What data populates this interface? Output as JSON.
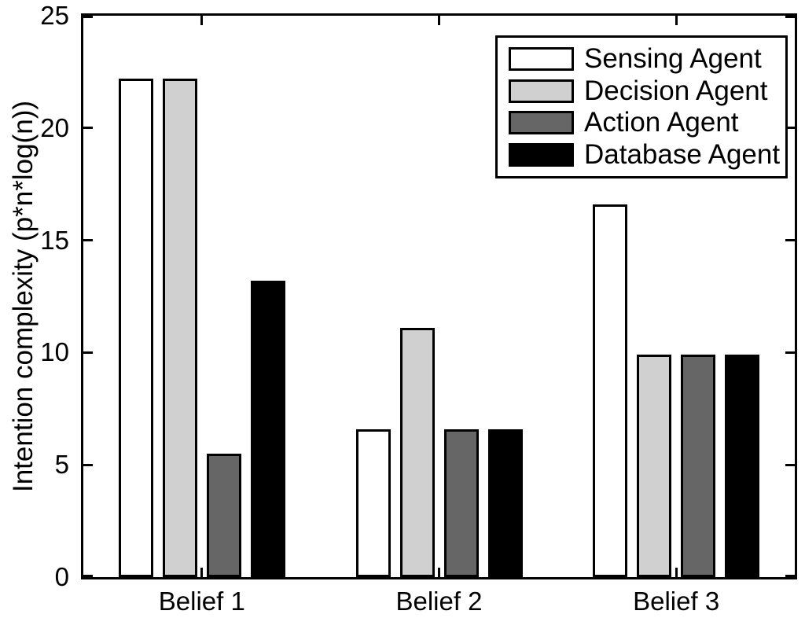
{
  "figure": {
    "background": "#ffffff",
    "frame_color": "#000000"
  },
  "chart_data": {
    "type": "bar",
    "title": "",
    "xlabel": "",
    "ylabel": "Intention complexity (p*n*log(n))",
    "categories": [
      "Belief 1",
      "Belief 2",
      "Belief 3"
    ],
    "series": [
      {
        "name": "Sensing Agent",
        "color": "#ffffff",
        "values": [
          22.2,
          6.6,
          16.6
        ]
      },
      {
        "name": "Decision Agent",
        "color": "#d0d0d0",
        "values": [
          22.2,
          11.1,
          9.9
        ]
      },
      {
        "name": "Action Agent",
        "color": "#666666",
        "values": [
          5.5,
          6.6,
          9.9
        ]
      },
      {
        "name": "Database Agent",
        "color": "#000000",
        "values": [
          13.2,
          6.6,
          9.9
        ]
      }
    ],
    "ylim": [
      0,
      25
    ],
    "yticks": [
      0,
      5,
      10,
      15,
      20,
      25
    ],
    "grid": false,
    "legend_position": "top-right",
    "bar_edge_color": "#000000",
    "ticks_inward_all_sides": true
  }
}
